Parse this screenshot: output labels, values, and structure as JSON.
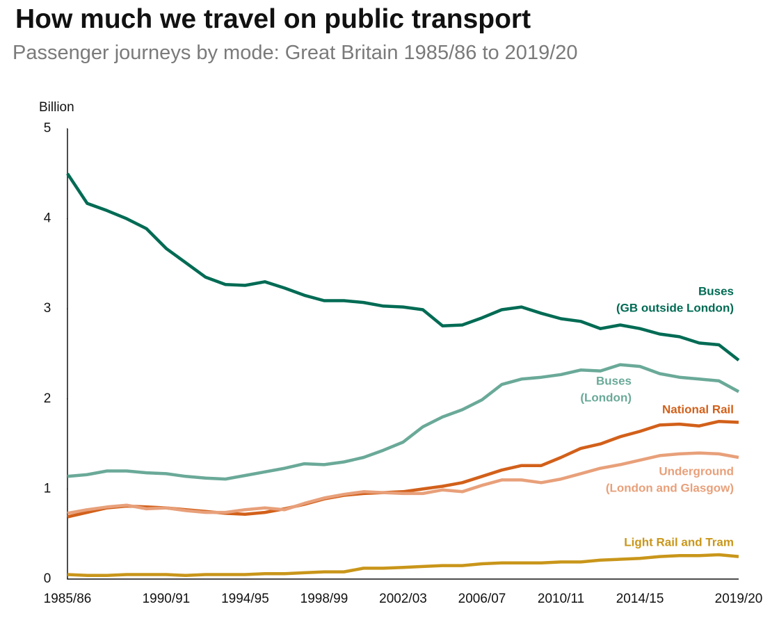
{
  "chart_data": {
    "type": "line",
    "title": "How much we travel on public transport",
    "subtitle": "Passenger journeys by mode: Great Britain 1985/86 to 2019/20",
    "y_label": "Billion",
    "categories": [
      "1985/86",
      null,
      null,
      null,
      null,
      "1990/91",
      null,
      null,
      null,
      "1994/95",
      null,
      null,
      null,
      "1998/99",
      null,
      null,
      null,
      "2002/03",
      null,
      null,
      null,
      "2006/07",
      null,
      null,
      null,
      "2010/11",
      null,
      null,
      null,
      "2014/15",
      null,
      null,
      null,
      null,
      "2019/20"
    ],
    "ylim": [
      0,
      5
    ],
    "yticks": [
      0,
      1,
      2,
      3,
      4,
      5
    ],
    "series": [
      {
        "name": [
          "Buses",
          "(GB outside London)"
        ],
        "color": "#006b54",
        "values": [
          4.5,
          4.17,
          4.09,
          4.0,
          3.89,
          3.67,
          3.51,
          3.35,
          3.27,
          3.26,
          3.3,
          3.23,
          3.15,
          3.09,
          3.09,
          3.07,
          3.03,
          3.02,
          2.99,
          2.81,
          2.82,
          2.9,
          2.99,
          3.02,
          2.95,
          2.89,
          2.86,
          2.78,
          2.82,
          2.78,
          2.72,
          2.69,
          2.62,
          2.6,
          2.43
        ]
      },
      {
        "name": [
          "Buses",
          "(London)"
        ],
        "color": "#6aa998",
        "values": [
          1.14,
          1.16,
          1.2,
          1.2,
          1.18,
          1.17,
          1.14,
          1.12,
          1.11,
          1.15,
          1.19,
          1.23,
          1.28,
          1.27,
          1.3,
          1.35,
          1.43,
          1.52,
          1.69,
          1.8,
          1.88,
          1.99,
          2.16,
          2.22,
          2.24,
          2.27,
          2.32,
          2.31,
          2.38,
          2.36,
          2.28,
          2.24,
          2.22,
          2.2,
          2.08
        ]
      },
      {
        "name": [
          "National Rail"
        ],
        "color": "#d2601a",
        "values": [
          0.69,
          0.74,
          0.79,
          0.81,
          0.8,
          0.79,
          0.77,
          0.75,
          0.73,
          0.72,
          0.74,
          0.78,
          0.83,
          0.89,
          0.93,
          0.95,
          0.96,
          0.97,
          1.0,
          1.03,
          1.07,
          1.14,
          1.21,
          1.26,
          1.26,
          1.35,
          1.45,
          1.5,
          1.58,
          1.64,
          1.71,
          1.72,
          1.7,
          1.75,
          1.74
        ]
      },
      {
        "name": [
          "Underground",
          "(London and Glasgow)"
        ],
        "color": "#e8a07a",
        "values": [
          0.73,
          0.77,
          0.8,
          0.82,
          0.78,
          0.79,
          0.76,
          0.74,
          0.74,
          0.77,
          0.79,
          0.77,
          0.84,
          0.9,
          0.94,
          0.97,
          0.96,
          0.95,
          0.95,
          0.99,
          0.97,
          1.04,
          1.1,
          1.1,
          1.07,
          1.11,
          1.17,
          1.23,
          1.27,
          1.32,
          1.37,
          1.39,
          1.4,
          1.39,
          1.35
        ]
      },
      {
        "name": [
          "Light Rail and Tram"
        ],
        "color": "#c9961a",
        "values": [
          0.05,
          0.04,
          0.04,
          0.05,
          0.05,
          0.05,
          0.04,
          0.05,
          0.05,
          0.05,
          0.06,
          0.06,
          0.07,
          0.08,
          0.08,
          0.12,
          0.12,
          0.13,
          0.14,
          0.15,
          0.15,
          0.17,
          0.18,
          0.18,
          0.18,
          0.19,
          0.19,
          0.21,
          0.22,
          0.23,
          0.25,
          0.26,
          0.26,
          0.27,
          0.25
        ]
      }
    ]
  }
}
